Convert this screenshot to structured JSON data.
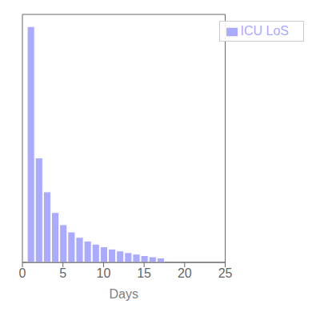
{
  "chart_data": {
    "type": "bar",
    "xlabel": "Days",
    "x": [
      1,
      2,
      3,
      4,
      5,
      6,
      7,
      8,
      9,
      10,
      11,
      12,
      13,
      14,
      15,
      16,
      17
    ],
    "series": [
      {
        "name": "ICU LoS",
        "color": "#aaaaff",
        "values": [
          0.97,
          0.43,
          0.29,
          0.205,
          0.155,
          0.125,
          0.103,
          0.088,
          0.075,
          0.064,
          0.055,
          0.047,
          0.04,
          0.034,
          0.028,
          0.023,
          0.018
        ]
      }
    ],
    "xlim": [
      0,
      25
    ],
    "xticks": [
      0,
      5,
      10,
      15,
      20,
      25
    ],
    "ylim": [
      0,
      1.02
    ],
    "legend": "upper right",
    "tick_labels": "x",
    "grid": false
  }
}
